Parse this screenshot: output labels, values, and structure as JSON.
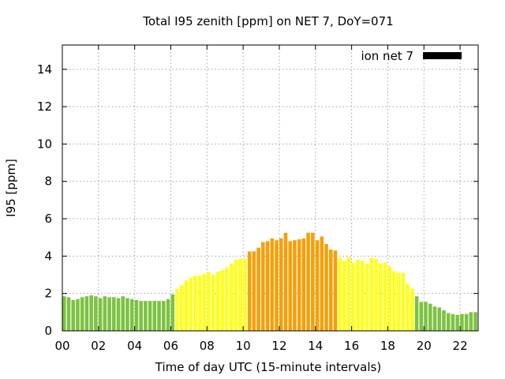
{
  "chart_data": {
    "type": "bar",
    "title": "Total I95 zenith [ppm] on NET 7, DoY=071",
    "xlabel": "Time of day UTC (15-minute intervals)",
    "ylabel": "I95 [ppm]",
    "legend": {
      "label": "ion net 7",
      "color": "#000000",
      "placement": "top-right"
    },
    "xlim": [
      0,
      23.0
    ],
    "ylim": [
      0,
      15.3
    ],
    "x_ticks": [
      {
        "value": 0,
        "label": "00"
      },
      {
        "value": 2,
        "label": "02"
      },
      {
        "value": 4,
        "label": "04"
      },
      {
        "value": 6,
        "label": "06"
      },
      {
        "value": 8,
        "label": "08"
      },
      {
        "value": 10,
        "label": "10"
      },
      {
        "value": 12,
        "label": "12"
      },
      {
        "value": 14,
        "label": "14"
      },
      {
        "value": 16,
        "label": "16"
      },
      {
        "value": 18,
        "label": "18"
      },
      {
        "value": 20,
        "label": "20"
      },
      {
        "value": 22,
        "label": "22"
      }
    ],
    "y_ticks": [
      {
        "value": 0,
        "label": "0"
      },
      {
        "value": 2,
        "label": "2"
      },
      {
        "value": 4,
        "label": "4"
      },
      {
        "value": 6,
        "label": "6"
      },
      {
        "value": 8,
        "label": "8"
      },
      {
        "value": 10,
        "label": "10"
      },
      {
        "value": 12,
        "label": "12"
      },
      {
        "value": 14,
        "label": "14"
      }
    ],
    "grid": true,
    "bar_width_hours": 0.2,
    "colors": {
      "green": "#7dc242",
      "yellow": "#ffff1a",
      "orange": "#f5a00a"
    },
    "bars": [
      {
        "x": 0.0,
        "y": 1.85,
        "c": "green"
      },
      {
        "x": 0.25,
        "y": 1.8,
        "c": "green"
      },
      {
        "x": 0.5,
        "y": 1.65,
        "c": "green"
      },
      {
        "x": 0.75,
        "y": 1.7,
        "c": "green"
      },
      {
        "x": 1.0,
        "y": 1.8,
        "c": "green"
      },
      {
        "x": 1.25,
        "y": 1.85,
        "c": "green"
      },
      {
        "x": 1.5,
        "y": 1.9,
        "c": "green"
      },
      {
        "x": 1.75,
        "y": 1.85,
        "c": "green"
      },
      {
        "x": 2.0,
        "y": 1.75,
        "c": "green"
      },
      {
        "x": 2.25,
        "y": 1.85,
        "c": "green"
      },
      {
        "x": 2.5,
        "y": 1.8,
        "c": "green"
      },
      {
        "x": 2.75,
        "y": 1.8,
        "c": "green"
      },
      {
        "x": 3.0,
        "y": 1.75,
        "c": "green"
      },
      {
        "x": 3.25,
        "y": 1.85,
        "c": "green"
      },
      {
        "x": 3.5,
        "y": 1.75,
        "c": "green"
      },
      {
        "x": 3.75,
        "y": 1.7,
        "c": "green"
      },
      {
        "x": 4.0,
        "y": 1.65,
        "c": "green"
      },
      {
        "x": 4.25,
        "y": 1.6,
        "c": "green"
      },
      {
        "x": 4.5,
        "y": 1.6,
        "c": "green"
      },
      {
        "x": 4.75,
        "y": 1.6,
        "c": "green"
      },
      {
        "x": 5.0,
        "y": 1.6,
        "c": "green"
      },
      {
        "x": 5.25,
        "y": 1.6,
        "c": "green"
      },
      {
        "x": 5.5,
        "y": 1.6,
        "c": "green"
      },
      {
        "x": 5.75,
        "y": 1.7,
        "c": "green"
      },
      {
        "x": 6.0,
        "y": 1.95,
        "c": "green"
      },
      {
        "x": 6.25,
        "y": 2.25,
        "c": "yellow"
      },
      {
        "x": 6.5,
        "y": 2.45,
        "c": "yellow"
      },
      {
        "x": 6.75,
        "y": 2.7,
        "c": "yellow"
      },
      {
        "x": 7.0,
        "y": 2.85,
        "c": "yellow"
      },
      {
        "x": 7.25,
        "y": 2.95,
        "c": "yellow"
      },
      {
        "x": 7.5,
        "y": 2.95,
        "c": "yellow"
      },
      {
        "x": 7.75,
        "y": 3.05,
        "c": "yellow"
      },
      {
        "x": 8.0,
        "y": 3.15,
        "c": "yellow"
      },
      {
        "x": 8.25,
        "y": 3.0,
        "c": "yellow"
      },
      {
        "x": 8.5,
        "y": 3.15,
        "c": "yellow"
      },
      {
        "x": 8.75,
        "y": 3.25,
        "c": "yellow"
      },
      {
        "x": 9.0,
        "y": 3.4,
        "c": "yellow"
      },
      {
        "x": 9.25,
        "y": 3.6,
        "c": "yellow"
      },
      {
        "x": 9.5,
        "y": 3.8,
        "c": "yellow"
      },
      {
        "x": 9.75,
        "y": 3.85,
        "c": "yellow"
      },
      {
        "x": 10.0,
        "y": 3.85,
        "c": "yellow"
      },
      {
        "x": 10.25,
        "y": 4.25,
        "c": "orange"
      },
      {
        "x": 10.5,
        "y": 4.25,
        "c": "orange"
      },
      {
        "x": 10.75,
        "y": 4.45,
        "c": "orange"
      },
      {
        "x": 11.0,
        "y": 4.75,
        "c": "orange"
      },
      {
        "x": 11.25,
        "y": 4.8,
        "c": "orange"
      },
      {
        "x": 11.5,
        "y": 4.95,
        "c": "orange"
      },
      {
        "x": 11.75,
        "y": 4.85,
        "c": "orange"
      },
      {
        "x": 12.0,
        "y": 4.95,
        "c": "orange"
      },
      {
        "x": 12.25,
        "y": 5.25,
        "c": "orange"
      },
      {
        "x": 12.5,
        "y": 4.8,
        "c": "orange"
      },
      {
        "x": 12.75,
        "y": 4.85,
        "c": "orange"
      },
      {
        "x": 13.0,
        "y": 4.9,
        "c": "orange"
      },
      {
        "x": 13.25,
        "y": 4.95,
        "c": "orange"
      },
      {
        "x": 13.5,
        "y": 5.25,
        "c": "orange"
      },
      {
        "x": 13.75,
        "y": 5.25,
        "c": "orange"
      },
      {
        "x": 14.0,
        "y": 4.85,
        "c": "orange"
      },
      {
        "x": 14.25,
        "y": 5.05,
        "c": "orange"
      },
      {
        "x": 14.5,
        "y": 4.65,
        "c": "orange"
      },
      {
        "x": 14.75,
        "y": 4.35,
        "c": "orange"
      },
      {
        "x": 15.0,
        "y": 4.3,
        "c": "orange"
      },
      {
        "x": 15.25,
        "y": 3.9,
        "c": "yellow"
      },
      {
        "x": 15.5,
        "y": 3.75,
        "c": "yellow"
      },
      {
        "x": 15.75,
        "y": 3.95,
        "c": "yellow"
      },
      {
        "x": 16.0,
        "y": 3.65,
        "c": "yellow"
      },
      {
        "x": 16.25,
        "y": 3.8,
        "c": "yellow"
      },
      {
        "x": 16.5,
        "y": 3.75,
        "c": "yellow"
      },
      {
        "x": 16.75,
        "y": 3.6,
        "c": "yellow"
      },
      {
        "x": 17.0,
        "y": 3.9,
        "c": "yellow"
      },
      {
        "x": 17.25,
        "y": 3.85,
        "c": "yellow"
      },
      {
        "x": 17.5,
        "y": 3.6,
        "c": "yellow"
      },
      {
        "x": 17.75,
        "y": 3.65,
        "c": "yellow"
      },
      {
        "x": 18.0,
        "y": 3.45,
        "c": "yellow"
      },
      {
        "x": 18.25,
        "y": 3.2,
        "c": "yellow"
      },
      {
        "x": 18.5,
        "y": 3.1,
        "c": "yellow"
      },
      {
        "x": 18.75,
        "y": 3.1,
        "c": "yellow"
      },
      {
        "x": 19.0,
        "y": 2.5,
        "c": "yellow"
      },
      {
        "x": 19.25,
        "y": 2.25,
        "c": "yellow"
      },
      {
        "x": 19.5,
        "y": 1.85,
        "c": "green"
      },
      {
        "x": 19.75,
        "y": 1.55,
        "c": "green"
      },
      {
        "x": 20.0,
        "y": 1.55,
        "c": "green"
      },
      {
        "x": 20.25,
        "y": 1.45,
        "c": "green"
      },
      {
        "x": 20.5,
        "y": 1.3,
        "c": "green"
      },
      {
        "x": 20.75,
        "y": 1.25,
        "c": "green"
      },
      {
        "x": 21.0,
        "y": 1.1,
        "c": "green"
      },
      {
        "x": 21.25,
        "y": 0.95,
        "c": "green"
      },
      {
        "x": 21.5,
        "y": 0.9,
        "c": "green"
      },
      {
        "x": 21.75,
        "y": 0.85,
        "c": "green"
      },
      {
        "x": 22.0,
        "y": 0.9,
        "c": "green"
      },
      {
        "x": 22.25,
        "y": 0.9,
        "c": "green"
      },
      {
        "x": 22.5,
        "y": 1.0,
        "c": "green"
      },
      {
        "x": 22.75,
        "y": 1.0,
        "c": "green"
      }
    ]
  }
}
